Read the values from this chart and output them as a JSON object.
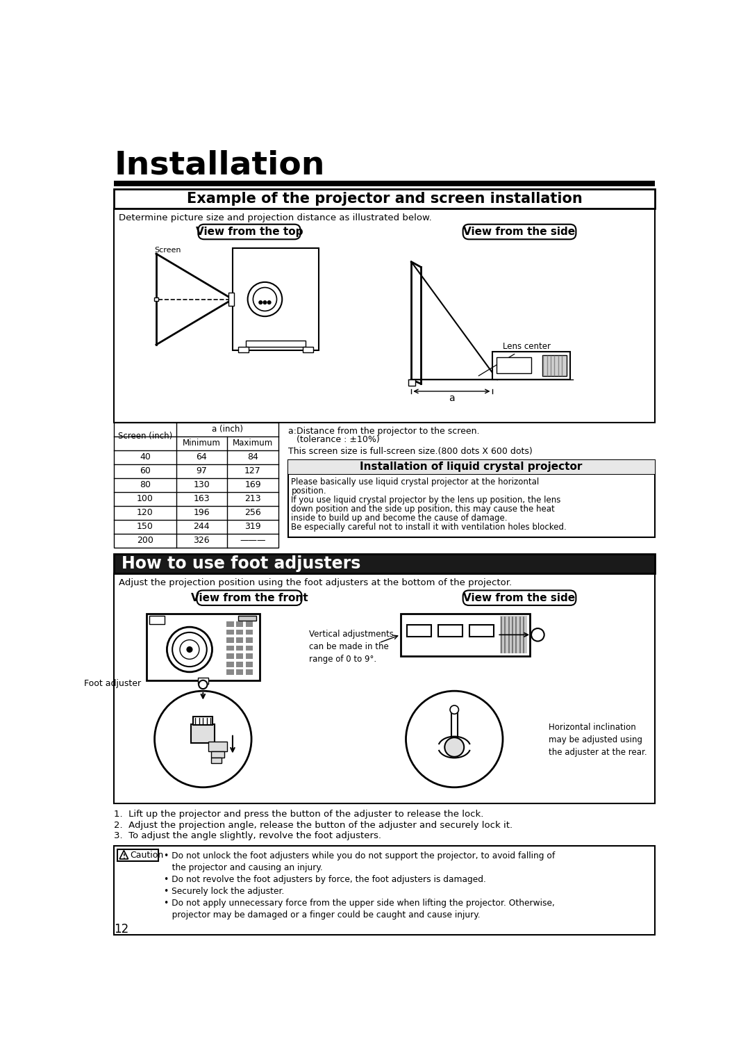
{
  "title": "Installation",
  "section1_title": "Example of the projector and screen installation",
  "section2_title": "How to use foot adjusters",
  "section1_subtitle": "Determine picture size and projection distance as illustrated below.",
  "section2_subtitle": "Adjust the projection position using the foot adjusters at the bottom of the projector.",
  "view_top_label": "View from the top",
  "view_side_label": "View from the side",
  "view_front_label": "View from the front",
  "view_side2_label": "View from the side",
  "screen_label": "Screen",
  "lens_center_label": "Lens center",
  "foot_adj_label": "Foot adjuster",
  "table_col0": "Screen (inch)",
  "table_col1": "a (inch)",
  "table_col1a": "Minimum",
  "table_col1b": "Maximum",
  "table_data": [
    [
      "40",
      "64",
      "84"
    ],
    [
      "60",
      "97",
      "127"
    ],
    [
      "80",
      "130",
      "169"
    ],
    [
      "100",
      "163",
      "213"
    ],
    [
      "120",
      "196",
      "256"
    ],
    [
      "150",
      "244",
      "319"
    ],
    [
      "200",
      "326",
      "———"
    ]
  ],
  "note1a": "a:Distance from the projector to the screen.",
  "note1b": "   (tolerance : ±10%)",
  "note2": "This screen size is full-screen size.(800 dots X 600 dots)",
  "install_box_title": "Installation of liquid crystal projector",
  "install_line1": "Please basically use liquid crystal projector at the horizontal",
  "install_line2": "position.",
  "install_line3": "If you use liquid crystal projector by the lens up position, the lens",
  "install_line4": "down position and the side up position, this may cause the heat",
  "install_line5": "inside to build up and become the cause of damage.",
  "install_line6": "Be especially careful not to install it with ventilation holes blocked.",
  "vertical_adj_text": "Vertical adjustments\ncan be made in the\nrange of 0 to 9°.",
  "horiz_adj_text": "Horizontal inclination\nmay be adjusted using\nthe adjuster at the rear.",
  "step1": "1.  Lift up the projector and press the button of the adjuster to release the lock.",
  "step2": "2.  Adjust the projection angle, release the button of the adjuster and securely lock it.",
  "step3": "3.  To adjust the angle slightly, revolve the foot adjusters.",
  "caution_label": "Caution",
  "caution_b1a": "• Do not unlock the foot adjusters while you do not support the projector, to avoid falling of",
  "caution_b1b": "   the projector and causing an injury.",
  "caution_b2": "• Do not revolve the foot adjusters by force, the foot adjusters is damaged.",
  "caution_b3": "• Securely lock the adjuster.",
  "caution_b4a": "• Do not apply unnecessary force from the upper side when lifting the projector. Otherwise,",
  "caution_b4b": "   projector may be damaged or a finger could be caught and cause injury.",
  "page_num": "12",
  "bg_color": "#ffffff"
}
